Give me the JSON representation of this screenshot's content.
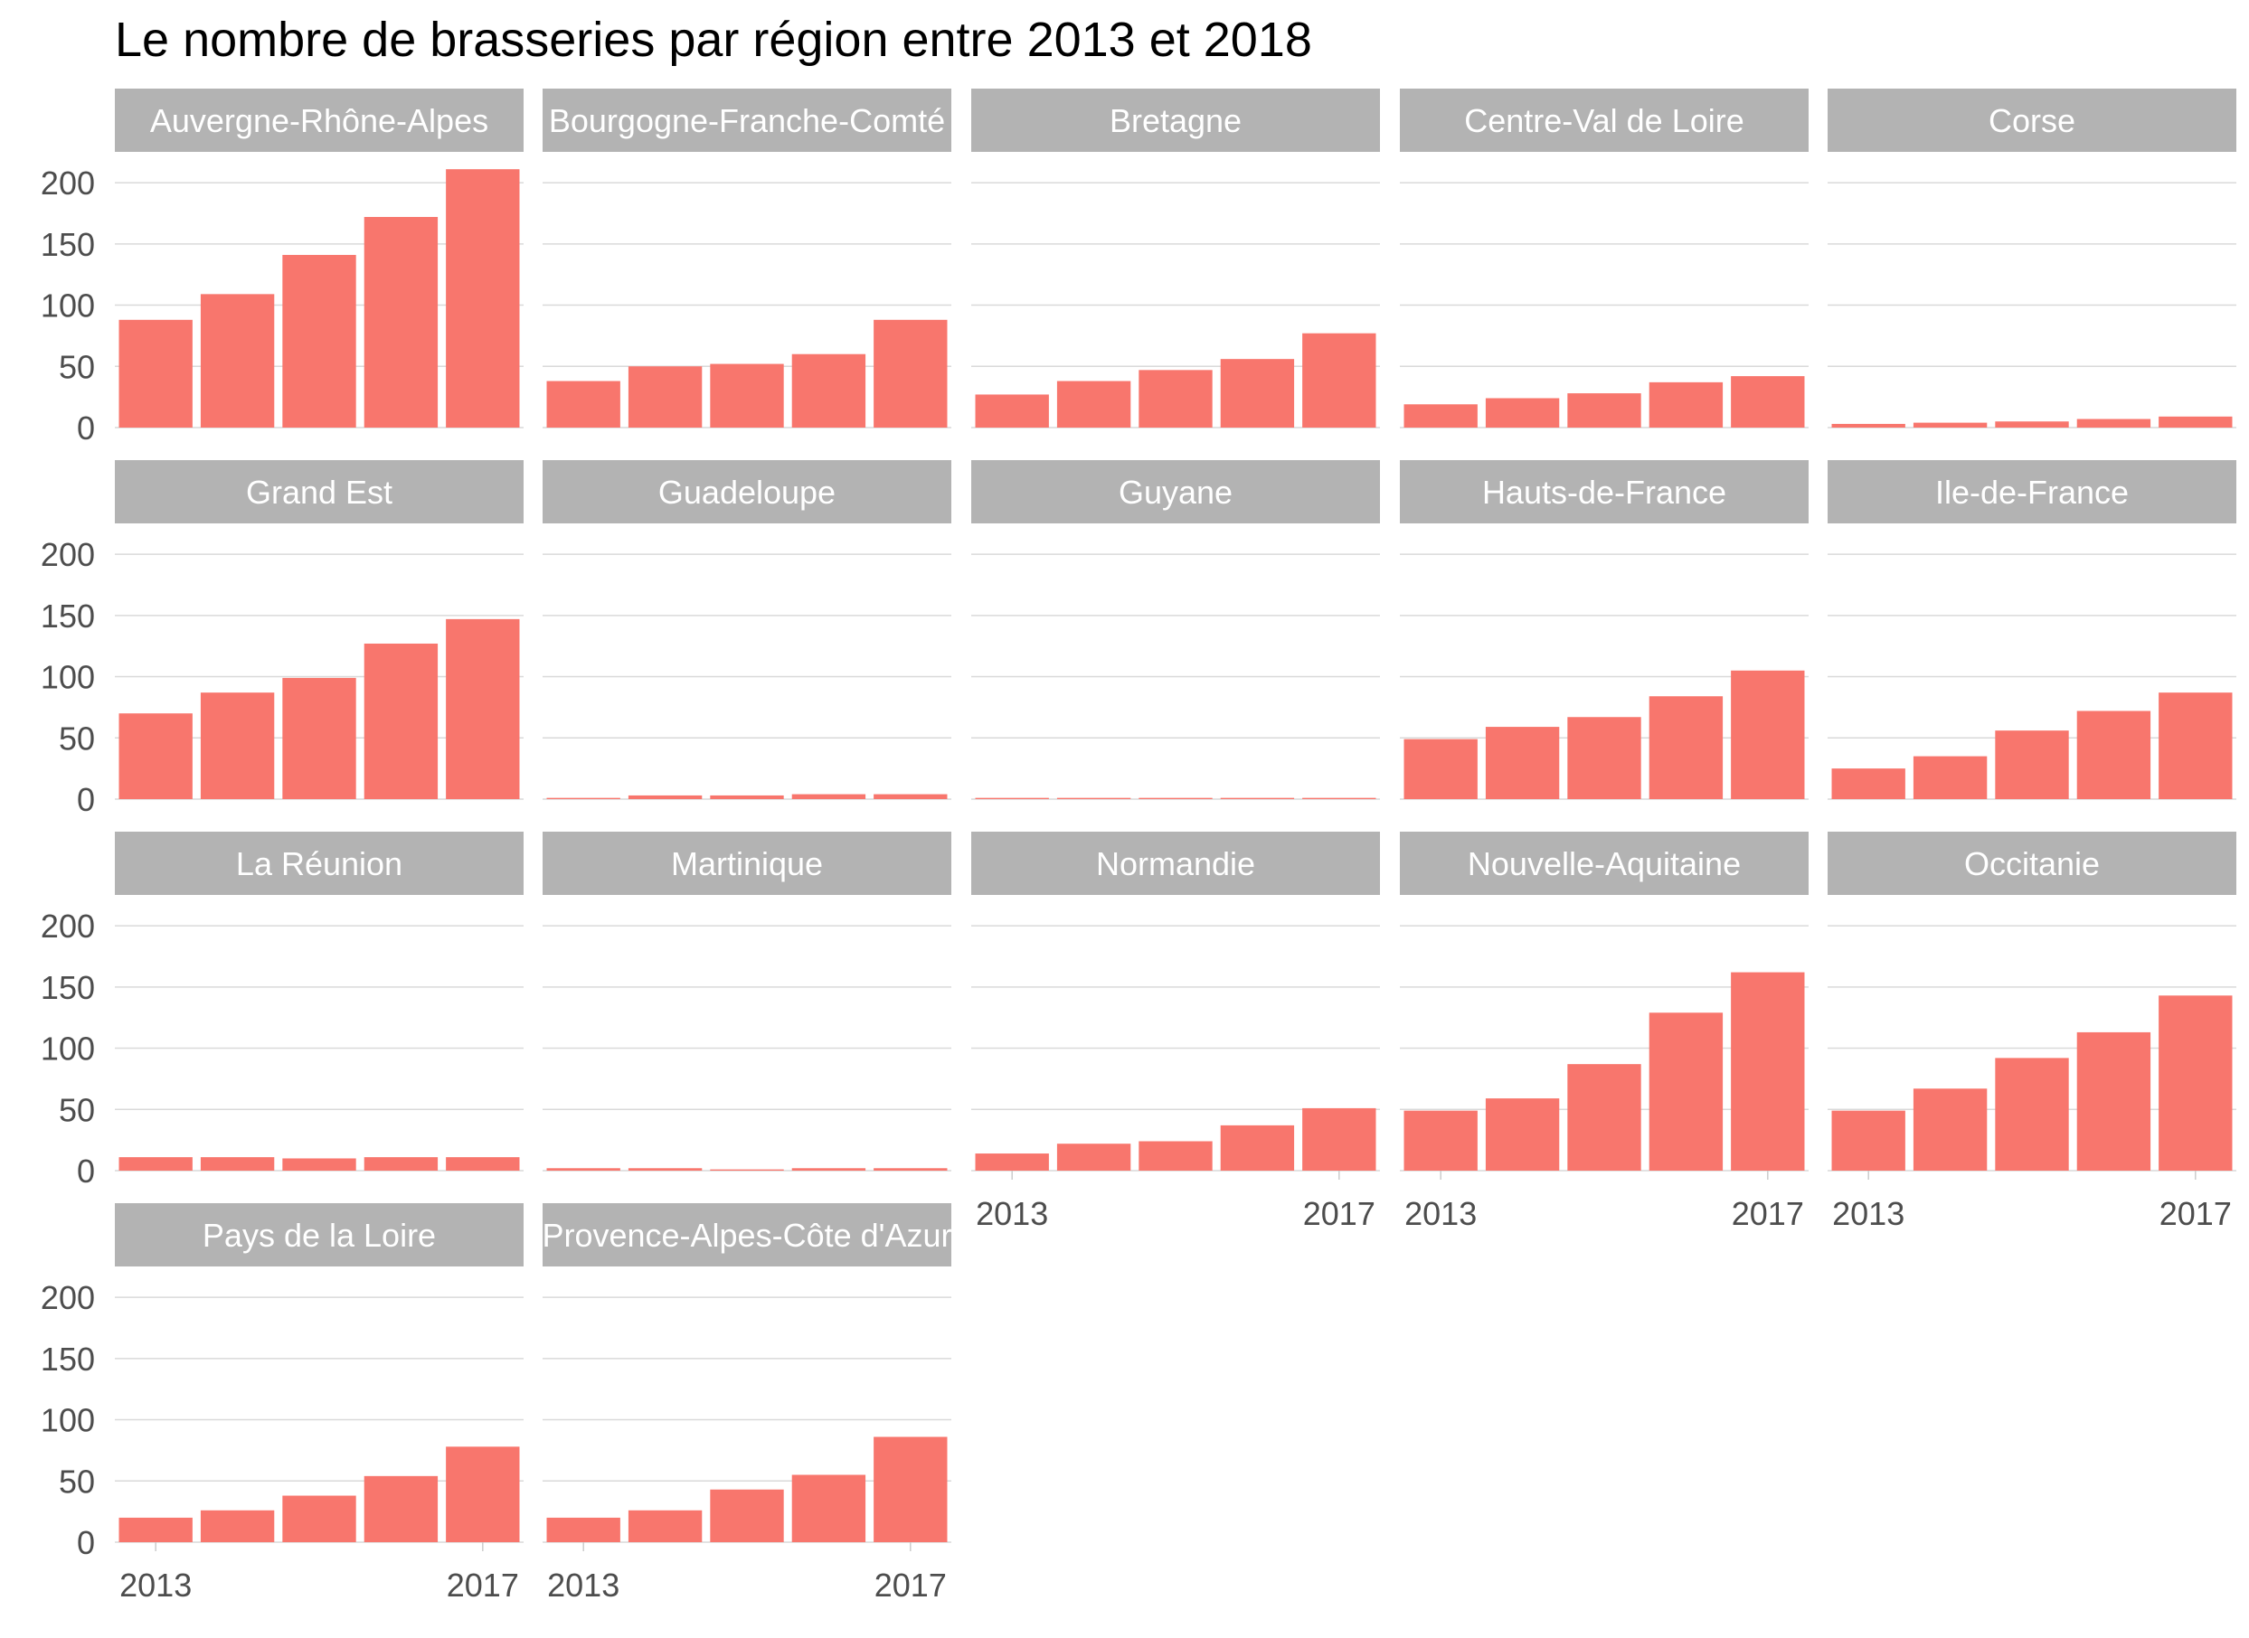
{
  "chart_data": {
    "type": "bar",
    "title": "Le nombre de brasseries par région entre 2013 et 2018",
    "xlabel": "",
    "ylabel": "",
    "x": [
      2013,
      2014,
      2015,
      2016,
      2017
    ],
    "x_tick_labels": [
      "2013",
      "2017"
    ],
    "y_ticks": [
      0,
      50,
      100,
      150,
      200
    ],
    "ylim": [
      0,
      220
    ],
    "grid": true,
    "layout": "facet-wrap",
    "colors": {
      "bar": "#f8766d",
      "strip": "#b3b3b3",
      "strip_text": "#ffffff",
      "grid": "#d9d9d9",
      "tick_text": "#4d4d4d"
    },
    "panels": [
      {
        "name": "Auvergne-Rhône-Alpes",
        "values": [
          88,
          109,
          141,
          172,
          211
        ]
      },
      {
        "name": "Bourgogne-Franche-Comté",
        "values": [
          38,
          50,
          52,
          60,
          88
        ]
      },
      {
        "name": "Bretagne",
        "values": [
          27,
          38,
          47,
          56,
          77
        ]
      },
      {
        "name": "Centre-Val de Loire",
        "values": [
          19,
          24,
          28,
          37,
          42
        ]
      },
      {
        "name": "Corse",
        "values": [
          3,
          4,
          5,
          7,
          9
        ]
      },
      {
        "name": "Grand Est",
        "values": [
          70,
          87,
          99,
          127,
          147
        ]
      },
      {
        "name": "Guadeloupe",
        "values": [
          1,
          3,
          3,
          4,
          4
        ]
      },
      {
        "name": "Guyane",
        "values": [
          1,
          1,
          1,
          1,
          1
        ]
      },
      {
        "name": "Hauts-de-France",
        "values": [
          49,
          59,
          67,
          84,
          105
        ]
      },
      {
        "name": "Ile-de-France",
        "values": [
          25,
          35,
          56,
          72,
          87
        ]
      },
      {
        "name": "La Réunion",
        "values": [
          11,
          11,
          10,
          11,
          11
        ]
      },
      {
        "name": "Martinique",
        "values": [
          2,
          2,
          1,
          2,
          2
        ]
      },
      {
        "name": "Normandie",
        "values": [
          14,
          22,
          24,
          37,
          51
        ]
      },
      {
        "name": "Nouvelle-Aquitaine",
        "values": [
          49,
          59,
          87,
          129,
          162
        ]
      },
      {
        "name": "Occitanie",
        "values": [
          49,
          67,
          92,
          113,
          143
        ]
      },
      {
        "name": "Pays de la Loire",
        "values": [
          20,
          26,
          38,
          54,
          78
        ]
      },
      {
        "name": "Provence-Alpes-Côte d'Azur",
        "values": [
          20,
          26,
          43,
          55,
          86
        ]
      }
    ]
  }
}
